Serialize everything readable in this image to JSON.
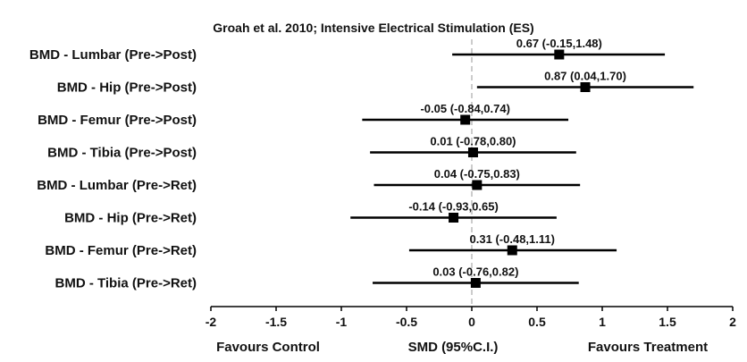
{
  "chart_data": {
    "type": "forest",
    "title": "Groah et al. 2010; Intensive Electrical Stimulation (ES)",
    "xlabel": "SMD (95%C.I.)",
    "footer_left": "Favours  Control",
    "footer_right": "Favours  Treatment",
    "xlim": [
      -2,
      2
    ],
    "xticks": [
      "-2",
      "-1.5",
      "-1",
      "-0.5",
      "0",
      "0.5",
      "1",
      "1.5",
      "2"
    ],
    "reference_line": 0,
    "rows": [
      {
        "label": "BMD - Lumbar (Pre->Post)",
        "smd": 0.67,
        "lower": -0.15,
        "upper": 1.48,
        "annotation": "0.67 (-0.15,1.48)"
      },
      {
        "label": "BMD - Hip (Pre->Post)",
        "smd": 0.87,
        "lower": 0.04,
        "upper": 1.7,
        "annotation": "0.87 (0.04,1.70)"
      },
      {
        "label": "BMD - Femur (Pre->Post)",
        "smd": -0.05,
        "lower": -0.84,
        "upper": 0.74,
        "annotation": "-0.05 (-0.84,0.74)"
      },
      {
        "label": "BMD - Tibia (Pre->Post)",
        "smd": 0.01,
        "lower": -0.78,
        "upper": 0.8,
        "annotation": "0.01 (-0.78,0.80)"
      },
      {
        "label": "BMD - Lumbar (Pre->Ret)",
        "smd": 0.04,
        "lower": -0.75,
        "upper": 0.83,
        "annotation": "0.04 (-0.75,0.83)"
      },
      {
        "label": "BMD - Hip (Pre->Ret)",
        "smd": -0.14,
        "lower": -0.93,
        "upper": 0.65,
        "annotation": "-0.14 (-0.93,0.65)"
      },
      {
        "label": "BMD - Femur (Pre->Ret)",
        "smd": 0.31,
        "lower": -0.48,
        "upper": 1.11,
        "annotation": "0.31 (-0.48,1.11)"
      },
      {
        "label": "BMD - Tibia (Pre->Ret)",
        "smd": 0.03,
        "lower": -0.76,
        "upper": 0.82,
        "annotation": "0.03 (-0.76,0.82)"
      }
    ]
  }
}
